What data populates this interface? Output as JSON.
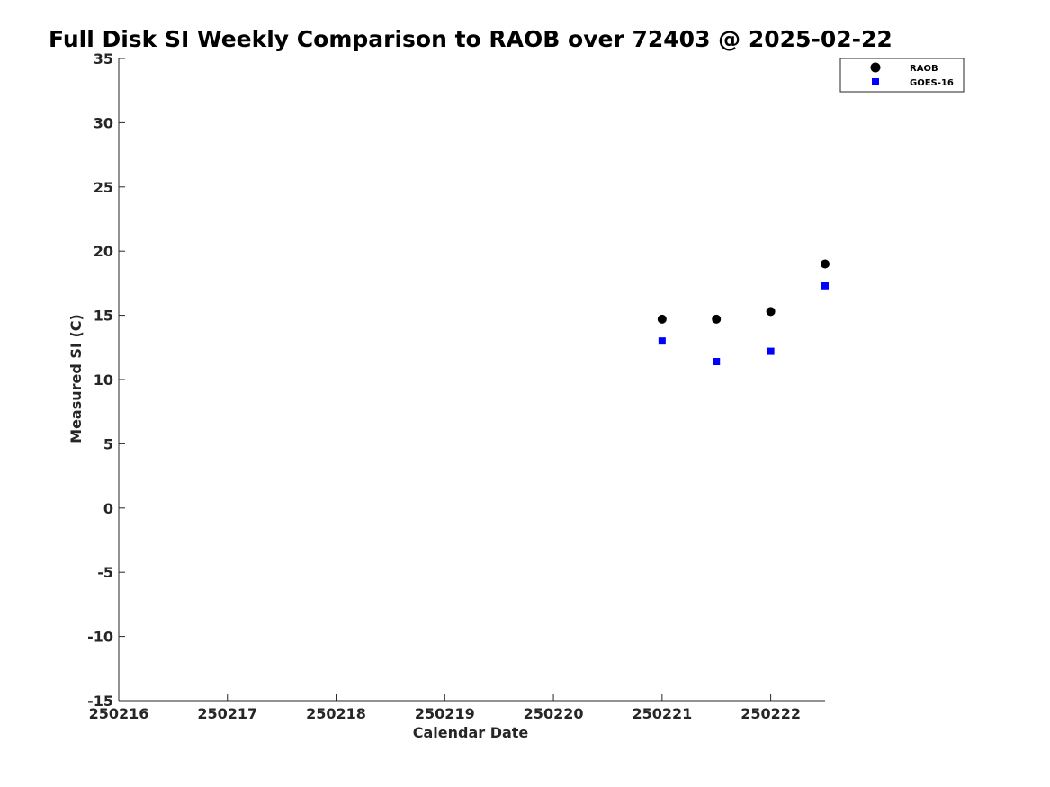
{
  "chart_data": {
    "type": "scatter",
    "title": "Full Disk SI Weekly Comparison to RAOB over 72403 @ 2025-02-22",
    "xlabel": "Calendar Date",
    "ylabel": "Measured SI (C)",
    "xlim": [
      250216,
      250222.5
    ],
    "ylim": [
      -15,
      35
    ],
    "x_ticks": [
      250216,
      250217,
      250218,
      250219,
      250220,
      250221,
      250222
    ],
    "x_tick_labels": [
      "250216",
      "250217",
      "250218",
      "250219",
      "250220",
      "250221",
      "250222"
    ],
    "y_ticks": [
      -15,
      -10,
      -5,
      0,
      5,
      10,
      15,
      20,
      25,
      30,
      35
    ],
    "y_tick_labels": [
      "-15",
      "-10",
      "-5",
      "0",
      "5",
      "10",
      "15",
      "20",
      "25",
      "30",
      "35"
    ],
    "grid": false,
    "legend_position": "top-right",
    "series": [
      {
        "name": "RAOB",
        "marker": "circle",
        "color": "#000000",
        "points": [
          [
            250221,
            14.7
          ],
          [
            250221.5,
            14.7
          ],
          [
            250222,
            15.3
          ],
          [
            250222.5,
            19.0
          ]
        ]
      },
      {
        "name": "GOES-16",
        "marker": "square",
        "color": "#0000ff",
        "points": [
          [
            250221,
            13.0
          ],
          [
            250221.5,
            11.4
          ],
          [
            250222,
            12.2
          ],
          [
            250222.5,
            17.3
          ]
        ]
      }
    ]
  }
}
